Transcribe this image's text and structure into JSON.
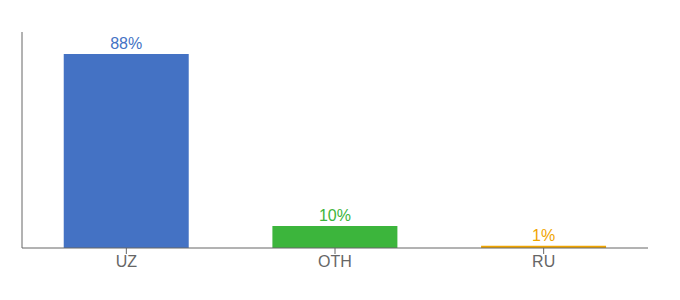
{
  "chart_data": {
    "type": "bar",
    "categories": [
      "UZ",
      "OTH",
      "RU"
    ],
    "values": [
      88,
      10,
      1
    ],
    "value_labels": [
      "88%",
      "10%",
      "1%"
    ],
    "colors": [
      "#4472c4",
      "#3cb53c",
      "#f0a500"
    ],
    "ylim": [
      0,
      98
    ],
    "data_labels": true,
    "tick_labels": "x",
    "grid": false
  }
}
